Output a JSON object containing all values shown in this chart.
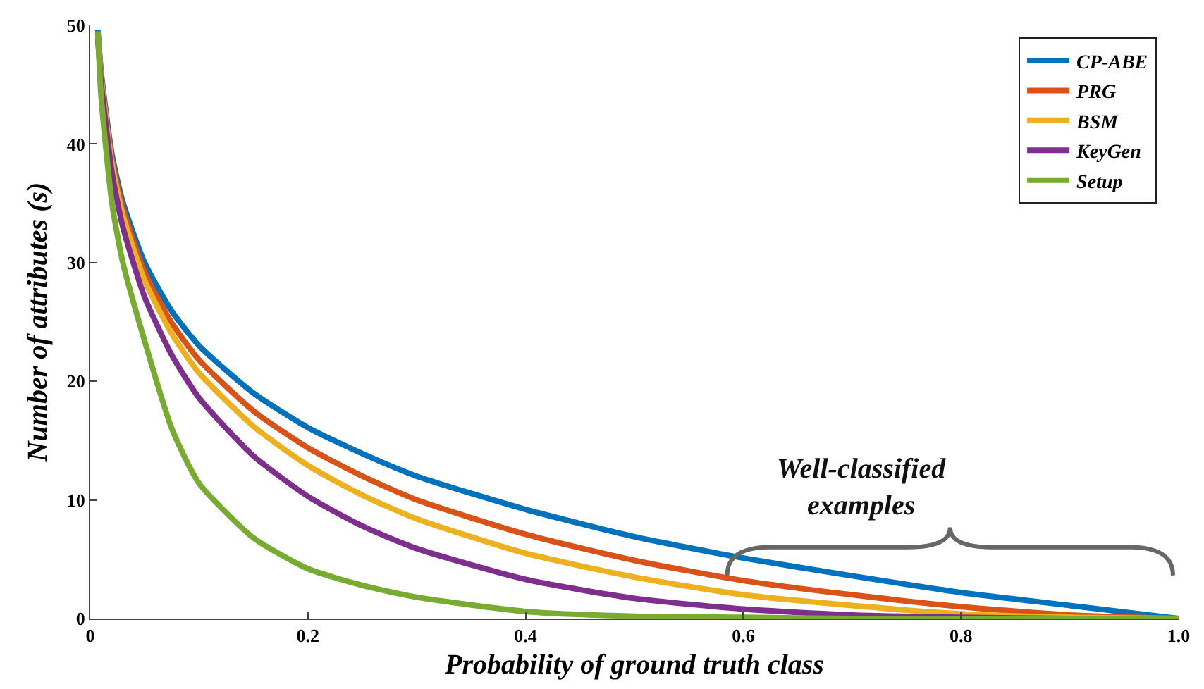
{
  "chart_data": {
    "type": "line",
    "xlabel": "Probability of ground truth class",
    "ylabel": "Number of attributes (s)",
    "x": [
      0.007,
      0.01,
      0.02,
      0.03,
      0.05,
      0.075,
      0.1,
      0.15,
      0.2,
      0.25,
      0.3,
      0.4,
      0.5,
      0.6,
      0.7,
      0.8,
      0.9,
      1.0
    ],
    "series": [
      {
        "name": "CP-ABE",
        "color": "#0072bd",
        "values": [
          49.6,
          46.1,
          39.1,
          35.1,
          30.0,
          25.9,
          23.0,
          19.0,
          16.1,
          13.9,
          12.0,
          9.2,
          6.9,
          5.1,
          3.6,
          2.2,
          1.1,
          0
        ]
      },
      {
        "name": "PRG",
        "color": "#d95319",
        "values": [
          49.4,
          45.9,
          38.7,
          34.6,
          29.2,
          24.9,
          21.8,
          17.5,
          14.4,
          12.0,
          10.0,
          7.1,
          4.9,
          3.2,
          2.0,
          1.0,
          0.3,
          0
        ]
      },
      {
        "name": "BSM",
        "color": "#edb120",
        "values": [
          49.2,
          45.6,
          38.3,
          34.0,
          28.5,
          24.0,
          20.7,
          16.2,
          12.9,
          10.4,
          8.4,
          5.5,
          3.5,
          2.0,
          1.1,
          0.4,
          0.1,
          0
        ]
      },
      {
        "name": "KeyGen",
        "color": "#7e2f8e",
        "values": [
          48.9,
          45.2,
          37.6,
          33.0,
          27.1,
          22.2,
          18.6,
          13.7,
          10.3,
          7.8,
          5.9,
          3.3,
          1.7,
          0.8,
          0.3,
          0.1,
          0,
          0
        ]
      },
      {
        "name": "Setup",
        "color": "#77ac30",
        "values": [
          49.5,
          44.0,
          35.0,
          30.0,
          23.4,
          16.0,
          11.4,
          6.8,
          4.2,
          2.8,
          1.8,
          0.6,
          0.2,
          0.1,
          0,
          0,
          0,
          0
        ]
      }
    ],
    "xlim": [
      0,
      1
    ],
    "xticks": [
      0,
      0.2,
      0.4,
      0.6,
      0.8,
      {
        "value": 1,
        "label": "1.0"
      }
    ],
    "ylim": [
      0,
      50
    ],
    "yticks": [
      0,
      10,
      20,
      30,
      40,
      50
    ],
    "annotations": [
      "Well-classified\nexamples"
    ],
    "grid": false,
    "legend": "top right",
    "marker": "none",
    "line_style": "solid"
  }
}
